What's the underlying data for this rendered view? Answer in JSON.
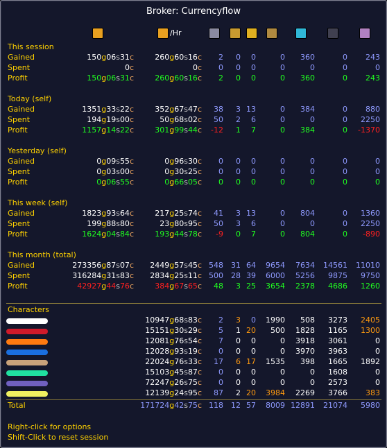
{
  "title": "Broker: Currencyflow",
  "header": {
    "per_hour_suffix": "/Hr",
    "icons": [
      {
        "name": "gold-coins-icon",
        "color": "#e8a020"
      },
      {
        "name": "gold-coins-per-hour-icon",
        "color": "#e8a020"
      },
      {
        "name": "currency-1-icon",
        "color": "#8a8aa0"
      },
      {
        "name": "currency-2-icon",
        "color": "#c89a30"
      },
      {
        "name": "currency-3-icon",
        "color": "#e0b020"
      },
      {
        "name": "currency-4-icon",
        "color": "#b08a40"
      },
      {
        "name": "currency-5-icon",
        "color": "#30b8d8"
      },
      {
        "name": "currency-6-icon",
        "color": "#404050"
      },
      {
        "name": "currency-7-icon",
        "color": "#b080c0"
      }
    ]
  },
  "sections": [
    {
      "label": "This session",
      "rows": [
        {
          "label": "Gained",
          "tone": "w",
          "gold": {
            "g": "150",
            "s": "06",
            "c": "31"
          },
          "hr": {
            "g": "260",
            "s": "60",
            "c": "16"
          },
          "cur": [
            "2",
            "0",
            "0",
            "0",
            "360",
            "0",
            "243"
          ],
          "curtone": "b"
        },
        {
          "label": "Spent",
          "tone": "w",
          "gold": {
            "g": "",
            "s": "",
            "c": "0"
          },
          "hr": {
            "g": "",
            "s": "",
            "c": "0"
          },
          "cur": [
            "0",
            "0",
            "0",
            "0",
            "0",
            "0",
            "0"
          ],
          "curtone": "b"
        },
        {
          "label": "Profit",
          "tone": "g",
          "gold": {
            "g": "150",
            "s": "06",
            "c": "31"
          },
          "hr": {
            "g": "260",
            "s": "60",
            "c": "16"
          },
          "cur": [
            "2",
            "0",
            "0",
            "0",
            "360",
            "0",
            "243"
          ],
          "curtone": "g"
        }
      ]
    },
    {
      "label": "Today (self)",
      "rows": [
        {
          "label": "Gained",
          "tone": "w",
          "gold": {
            "g": "1351",
            "s": "33",
            "c": "22"
          },
          "hr": {
            "g": "352",
            "s": "67",
            "c": "47"
          },
          "cur": [
            "38",
            "3",
            "13",
            "0",
            "384",
            "0",
            "880"
          ],
          "curtone": "b"
        },
        {
          "label": "Spent",
          "tone": "w",
          "gold": {
            "g": "194",
            "s": "19",
            "c": "00"
          },
          "hr": {
            "g": "50",
            "s": "68",
            "c": "02"
          },
          "cur": [
            "50",
            "2",
            "6",
            "0",
            "0",
            "0",
            "2250"
          ],
          "curtone": "b"
        },
        {
          "label": "Profit",
          "tone": "g",
          "gold": {
            "g": "1157",
            "s": "14",
            "c": "22"
          },
          "hr": {
            "g": "301",
            "s": "99",
            "c": "44"
          },
          "cur": [
            "-12",
            "1",
            "7",
            "0",
            "384",
            "0",
            "-1370"
          ],
          "curtone": "g",
          "neg": [
            0,
            6
          ]
        }
      ]
    },
    {
      "label": "Yesterday (self)",
      "rows": [
        {
          "label": "Gained",
          "tone": "w",
          "gold": {
            "g": "0",
            "s": "09",
            "c": "55"
          },
          "hr": {
            "g": "0",
            "s": "96",
            "c": "30"
          },
          "cur": [
            "0",
            "0",
            "0",
            "0",
            "0",
            "0",
            "0"
          ],
          "curtone": "b"
        },
        {
          "label": "Spent",
          "tone": "w",
          "gold": {
            "g": "0",
            "s": "03",
            "c": "00"
          },
          "hr": {
            "g": "0",
            "s": "30",
            "c": "25"
          },
          "cur": [
            "0",
            "0",
            "0",
            "0",
            "0",
            "0",
            "0"
          ],
          "curtone": "b"
        },
        {
          "label": "Profit",
          "tone": "g",
          "gold": {
            "g": "0",
            "s": "06",
            "c": "55"
          },
          "hr": {
            "g": "0",
            "s": "66",
            "c": "05"
          },
          "cur": [
            "0",
            "0",
            "0",
            "0",
            "0",
            "0",
            "0"
          ],
          "curtone": "g"
        }
      ]
    },
    {
      "label": "This week (self)",
      "rows": [
        {
          "label": "Gained",
          "tone": "w",
          "gold": {
            "g": "1823",
            "s": "93",
            "c": "64"
          },
          "hr": {
            "g": "217",
            "s": "25",
            "c": "74"
          },
          "cur": [
            "41",
            "3",
            "13",
            "0",
            "804",
            "0",
            "1360"
          ],
          "curtone": "b"
        },
        {
          "label": "Spent",
          "tone": "w",
          "gold": {
            "g": "199",
            "s": "88",
            "c": "80"
          },
          "hr": {
            "g": "23",
            "s": "80",
            "c": "95"
          },
          "cur": [
            "50",
            "3",
            "6",
            "0",
            "0",
            "0",
            "2250"
          ],
          "curtone": "b"
        },
        {
          "label": "Profit",
          "tone": "g",
          "gold": {
            "g": "1624",
            "s": "04",
            "c": "84"
          },
          "hr": {
            "g": "193",
            "s": "44",
            "c": "78"
          },
          "cur": [
            "-9",
            "0",
            "7",
            "0",
            "804",
            "0",
            "-890"
          ],
          "curtone": "g",
          "neg": [
            0,
            6
          ]
        }
      ]
    },
    {
      "label": "This month (total)",
      "rows": [
        {
          "label": "Gained",
          "tone": "w",
          "gold": {
            "g": "273356",
            "s": "87",
            "c": "07"
          },
          "hr": {
            "g": "2449",
            "s": "57",
            "c": "45"
          },
          "cur": [
            "548",
            "31",
            "64",
            "9654",
            "7634",
            "14561",
            "11010"
          ],
          "curtone": "b"
        },
        {
          "label": "Spent",
          "tone": "w",
          "gold": {
            "g": "316284",
            "s": "31",
            "c": "83"
          },
          "hr": {
            "g": "2834",
            "s": "25",
            "c": "11"
          },
          "cur": [
            "500",
            "28",
            "39",
            "6000",
            "5256",
            "9875",
            "9750"
          ],
          "curtone": "b"
        },
        {
          "label": "Profit",
          "tone": "r",
          "gold": {
            "g": "42927",
            "s": "44",
            "c": "76"
          },
          "hr": {
            "g": "384",
            "s": "67",
            "c": "65"
          },
          "cur": [
            "48",
            "3",
            "25",
            "3654",
            "2378",
            "4686",
            "1260"
          ],
          "curtone": "g"
        }
      ]
    }
  ],
  "characters": {
    "label": "Characters",
    "rows": [
      {
        "color": "#ffffff",
        "gold": {
          "g": "10947",
          "s": "68",
          "c": "83"
        },
        "cur": [
          "2",
          "3",
          "0",
          "1990",
          "508",
          "3273",
          "2405"
        ],
        "tones": [
          "b",
          "o",
          "b",
          "w",
          "w",
          "w",
          "o"
        ]
      },
      {
        "color": "#d01a2a",
        "gold": {
          "g": "15151",
          "s": "30",
          "c": "29"
        },
        "cur": [
          "5",
          "1",
          "20",
          "500",
          "1828",
          "1165",
          "1300"
        ],
        "tones": [
          "b",
          "w",
          "o",
          "w",
          "w",
          "w",
          "o"
        ]
      },
      {
        "color": "#ff7a10",
        "gold": {
          "g": "12081",
          "s": "76",
          "c": "54"
        },
        "cur": [
          "7",
          "0",
          "0",
          "0",
          "3918",
          "3061",
          "0"
        ],
        "tones": [
          "b",
          "w",
          "w",
          "w",
          "w",
          "w",
          "w"
        ]
      },
      {
        "color": "#1a6fe0",
        "gold": {
          "g": "12028",
          "s": "93",
          "c": "19"
        },
        "cur": [
          "0",
          "0",
          "0",
          "0",
          "3970",
          "3963",
          "0"
        ],
        "tones": [
          "b",
          "w",
          "w",
          "w",
          "w",
          "w",
          "w"
        ]
      },
      {
        "color": "#c8a27a",
        "gold": {
          "g": "22024",
          "s": "76",
          "c": "33"
        },
        "cur": [
          "17",
          "6",
          "17",
          "1535",
          "398",
          "1665",
          "1892"
        ],
        "tones": [
          "b",
          "o",
          "o",
          "w",
          "w",
          "w",
          "w"
        ]
      },
      {
        "color": "#20e0a0",
        "gold": {
          "g": "15103",
          "s": "45",
          "c": "87"
        },
        "cur": [
          "0",
          "0",
          "0",
          "0",
          "0",
          "1608",
          "0"
        ],
        "tones": [
          "b",
          "w",
          "w",
          "w",
          "w",
          "w",
          "w"
        ]
      },
      {
        "color": "#7060c0",
        "gold": {
          "g": "72247",
          "s": "26",
          "c": "75"
        },
        "cur": [
          "0",
          "0",
          "0",
          "0",
          "0",
          "2573",
          "0"
        ],
        "tones": [
          "b",
          "w",
          "w",
          "w",
          "w",
          "w",
          "w"
        ]
      },
      {
        "color": "#f0f060",
        "gold": {
          "g": "12139",
          "s": "24",
          "c": "95"
        },
        "cur": [
          "87",
          "2",
          "20",
          "3984",
          "2269",
          "3766",
          "383"
        ],
        "tones": [
          "b",
          "w",
          "o",
          "o",
          "w",
          "w",
          "o"
        ]
      }
    ]
  },
  "total": {
    "label": "Total",
    "gold": {
      "g": "171724",
      "s": "42",
      "c": "75"
    },
    "cur": [
      "118",
      "12",
      "57",
      "8009",
      "12891",
      "21074",
      "5980"
    ]
  },
  "footer": [
    "Right-click for options",
    "Shift-Click to reset session"
  ]
}
